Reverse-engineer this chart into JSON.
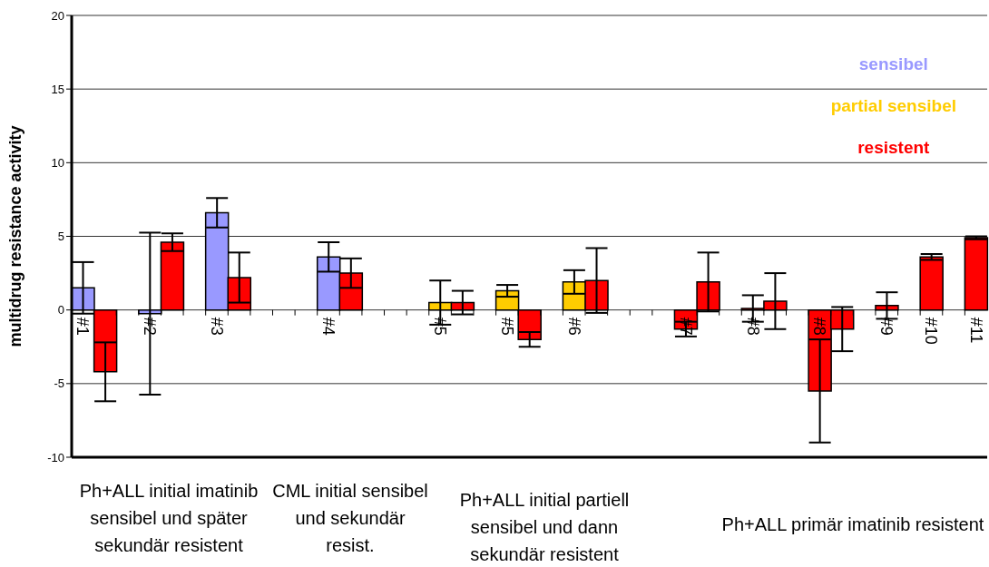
{
  "chart_data": {
    "type": "bar",
    "stacked": true,
    "ylabel": "multidrug resistance activity",
    "categories": [
      "#1",
      null,
      null,
      "#2",
      null,
      null,
      "#3",
      null,
      null,
      null,
      null,
      "#4",
      null,
      null,
      null,
      null,
      "#5",
      null,
      null,
      "#5",
      null,
      null,
      "#6",
      null,
      null,
      null,
      null,
      "#7",
      null,
      null,
      "#8",
      null,
      null,
      "#8",
      null,
      null,
      "#9",
      null,
      "#10",
      null,
      "#11"
    ],
    "series": [
      {
        "name": "sensibel",
        "color": "#9999ff",
        "values": [
          1.5,
          null,
          null,
          -0.25,
          null,
          null,
          6.6,
          null,
          null,
          null,
          null,
          3.6,
          null,
          null,
          null,
          null,
          null,
          null,
          null,
          null,
          null,
          null,
          null,
          null,
          null,
          null,
          null,
          null,
          null,
          null,
          null,
          null,
          null,
          null,
          null,
          null,
          null,
          null,
          null,
          null,
          null
        ],
        "errors": [
          1.75,
          null,
          null,
          5.5,
          null,
          null,
          1.0,
          null,
          null,
          null,
          null,
          1.0,
          null,
          null,
          null,
          null,
          null,
          null,
          null,
          null,
          null,
          null,
          null,
          null,
          null,
          null,
          null,
          null,
          null,
          null,
          null,
          null,
          null,
          null,
          null,
          null,
          null,
          null,
          null,
          null,
          null
        ]
      },
      {
        "name": "partial sensibel",
        "color": "#ffcc00",
        "values": [
          null,
          null,
          null,
          null,
          null,
          null,
          null,
          null,
          null,
          null,
          null,
          null,
          null,
          null,
          null,
          null,
          0.5,
          null,
          null,
          1.3,
          null,
          null,
          1.9,
          null,
          null,
          null,
          null,
          null,
          null,
          null,
          null,
          null,
          null,
          null,
          null,
          null,
          null,
          null,
          null,
          null,
          null
        ],
        "errors": [
          null,
          null,
          null,
          null,
          null,
          null,
          null,
          null,
          null,
          null,
          null,
          null,
          null,
          null,
          null,
          null,
          1.5,
          null,
          null,
          0.4,
          null,
          null,
          0.8,
          null,
          null,
          null,
          null,
          null,
          null,
          null,
          null,
          null,
          null,
          null,
          null,
          null,
          null,
          null,
          null,
          null,
          null
        ]
      },
      {
        "name": "resistent",
        "color": "#ff0000",
        "values": [
          null,
          -4.2,
          null,
          null,
          4.6,
          null,
          null,
          2.2,
          null,
          null,
          null,
          null,
          2.5,
          null,
          null,
          null,
          null,
          0.5,
          null,
          null,
          -2.0,
          null,
          null,
          2.0,
          null,
          null,
          null,
          -1.3,
          1.9,
          null,
          0.1,
          0.6,
          null,
          -5.5,
          -1.3,
          null,
          0.3,
          null,
          3.6,
          null,
          4.9
        ],
        "errors": [
          null,
          2.0,
          null,
          null,
          0.6,
          null,
          null,
          1.7,
          null,
          null,
          null,
          null,
          1.0,
          null,
          null,
          null,
          null,
          0.8,
          null,
          null,
          0.5,
          null,
          null,
          2.2,
          null,
          null,
          null,
          0.5,
          2.0,
          null,
          0.9,
          1.9,
          null,
          3.5,
          1.5,
          null,
          0.9,
          null,
          0.2,
          null,
          0.1
        ]
      }
    ],
    "ylim": [
      -10,
      20
    ],
    "yticks": [
      -10,
      -5,
      0,
      5,
      10,
      15,
      20
    ],
    "grid": "y",
    "legend": "top right",
    "annotations": [
      "Ph+ALL initial imatinib sensibel und später sekundär resistent",
      "CML initial sensibel und sekundär resist.",
      "Ph+ALL initial partiell sensibel und dann sekundär resistent",
      "Ph+ALL primär imatinib resistent"
    ]
  }
}
